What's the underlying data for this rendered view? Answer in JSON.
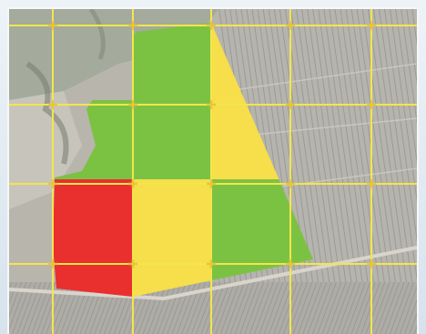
{
  "map": {
    "type": "aerial-field-zoning",
    "grid": {
      "columns": 4,
      "rows": 4,
      "line_color": "#f2e64a",
      "marker": "small-cross"
    },
    "zone_colors": {
      "high": "#7cc242",
      "medium": "#f7de4b",
      "low": "#ea2f2f"
    },
    "zones": [
      {
        "row": 0,
        "col": 1,
        "level": "high"
      },
      {
        "row": 0,
        "col": 2,
        "level": "medium"
      },
      {
        "row": 1,
        "col": 0,
        "level": "high"
      },
      {
        "row": 1,
        "col": 1,
        "level": "high"
      },
      {
        "row": 1,
        "col": 2,
        "level": "medium"
      },
      {
        "row": 2,
        "col": 0,
        "level": "low"
      },
      {
        "row": 2,
        "col": 1,
        "level": "medium"
      },
      {
        "row": 2,
        "col": 2,
        "level": "high"
      },
      {
        "row": 2,
        "col": 3,
        "level": "high"
      },
      {
        "row": 3,
        "col": 0,
        "level": "low"
      },
      {
        "row": 3,
        "col": 1,
        "level": "medium"
      },
      {
        "row": 3,
        "col": 2,
        "level": "high"
      }
    ]
  }
}
